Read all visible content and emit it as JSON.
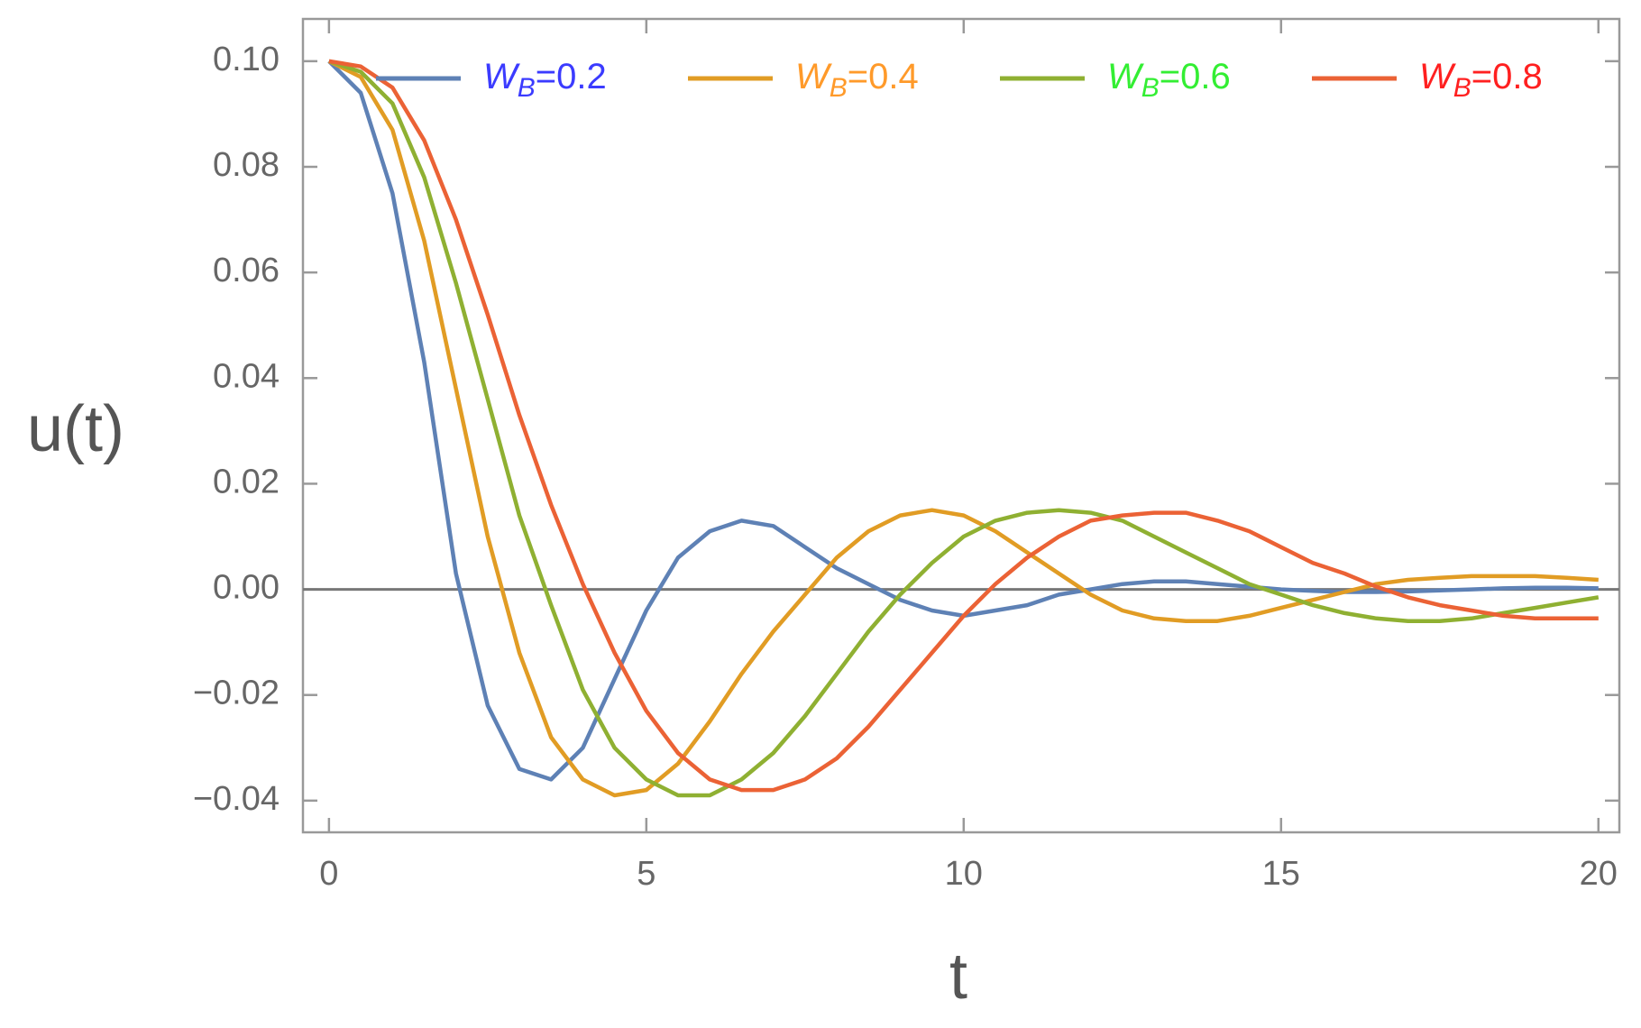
{
  "chart_data": {
    "type": "line",
    "x_label": "t",
    "y_label": "u(t)",
    "x": [
      0,
      0.5,
      1,
      1.5,
      2,
      2.5,
      3,
      3.5,
      4,
      4.5,
      5,
      5.5,
      6,
      6.5,
      7,
      7.5,
      8,
      8.5,
      9,
      9.5,
      10,
      10.5,
      11,
      11.5,
      12,
      12.5,
      13,
      13.5,
      14,
      14.5,
      15,
      15.5,
      16,
      16.5,
      17,
      17.5,
      18,
      18.5,
      19,
      19.5,
      20
    ],
    "series": [
      {
        "name": "WB=0.2",
        "color": "#5e81b5",
        "label_color": "#3b3bff",
        "values": [
          0.1,
          0.094,
          0.075,
          0.043,
          0.003,
          -0.022,
          -0.034,
          -0.036,
          -0.03,
          -0.017,
          -0.004,
          0.006,
          0.011,
          0.013,
          0.012,
          0.008,
          0.004,
          0.001,
          -0.002,
          -0.004,
          -0.005,
          -0.004,
          -0.003,
          -0.001,
          0.0,
          0.001,
          0.0015,
          0.0015,
          0.001,
          0.0005,
          0.0,
          -0.0003,
          -0.0005,
          -0.0005,
          -0.0004,
          -0.0002,
          0.0,
          0.0002,
          0.0003,
          0.0003,
          0.0002
        ]
      },
      {
        "name": "WB=0.4",
        "color": "#e19c24",
        "label_color": "#ff9a2a",
        "values": [
          0.1,
          0.097,
          0.087,
          0.066,
          0.038,
          0.01,
          -0.012,
          -0.028,
          -0.036,
          -0.039,
          -0.038,
          -0.033,
          -0.025,
          -0.016,
          -0.008,
          -0.001,
          0.006,
          0.011,
          0.014,
          0.015,
          0.014,
          0.011,
          0.007,
          0.003,
          -0.001,
          -0.004,
          -0.0055,
          -0.006,
          -0.006,
          -0.005,
          -0.0035,
          -0.002,
          -0.0005,
          0.001,
          0.0018,
          0.0022,
          0.0025,
          0.0025,
          0.0025,
          0.0022,
          0.0018
        ]
      },
      {
        "name": "WB=0.6",
        "color": "#8fb032",
        "label_color": "#33ee33",
        "values": [
          0.1,
          0.098,
          0.092,
          0.078,
          0.058,
          0.036,
          0.014,
          -0.003,
          -0.019,
          -0.03,
          -0.036,
          -0.039,
          -0.039,
          -0.036,
          -0.031,
          -0.024,
          -0.016,
          -0.008,
          -0.001,
          0.005,
          0.01,
          0.013,
          0.0145,
          0.015,
          0.0145,
          0.013,
          0.01,
          0.007,
          0.004,
          0.001,
          -0.001,
          -0.003,
          -0.0045,
          -0.0055,
          -0.006,
          -0.006,
          -0.0055,
          -0.0045,
          -0.0035,
          -0.0025,
          -0.0015
        ]
      },
      {
        "name": "WB=0.8",
        "color": "#eb6235",
        "label_color": "#ff2020",
        "values": [
          0.1,
          0.099,
          0.095,
          0.085,
          0.07,
          0.052,
          0.033,
          0.016,
          0.001,
          -0.012,
          -0.023,
          -0.031,
          -0.036,
          -0.038,
          -0.038,
          -0.036,
          -0.032,
          -0.026,
          -0.019,
          -0.012,
          -0.005,
          0.001,
          0.006,
          0.01,
          0.013,
          0.014,
          0.0145,
          0.0145,
          0.013,
          0.011,
          0.008,
          0.005,
          0.003,
          0.0005,
          -0.0015,
          -0.003,
          -0.004,
          -0.005,
          -0.0055,
          -0.0055,
          -0.0055
        ]
      }
    ],
    "xlim": [
      -0.41,
      20.33
    ],
    "ylim": [
      -0.046,
      0.108
    ],
    "xticks": [
      0,
      5,
      10,
      15,
      20
    ],
    "yticks": [
      {
        "value": 0.1,
        "label": "0.10"
      },
      {
        "value": 0.08,
        "label": "0.08"
      },
      {
        "value": 0.06,
        "label": "0.06"
      },
      {
        "value": 0.04,
        "label": "0.04"
      },
      {
        "value": 0.02,
        "label": "0.02"
      },
      {
        "value": 0,
        "label": "0.00"
      },
      {
        "value": -0.02,
        "label": "−0.02"
      },
      {
        "value": -0.04,
        "label": "−0.04"
      }
    ],
    "legend": "top",
    "zero_line": true
  }
}
